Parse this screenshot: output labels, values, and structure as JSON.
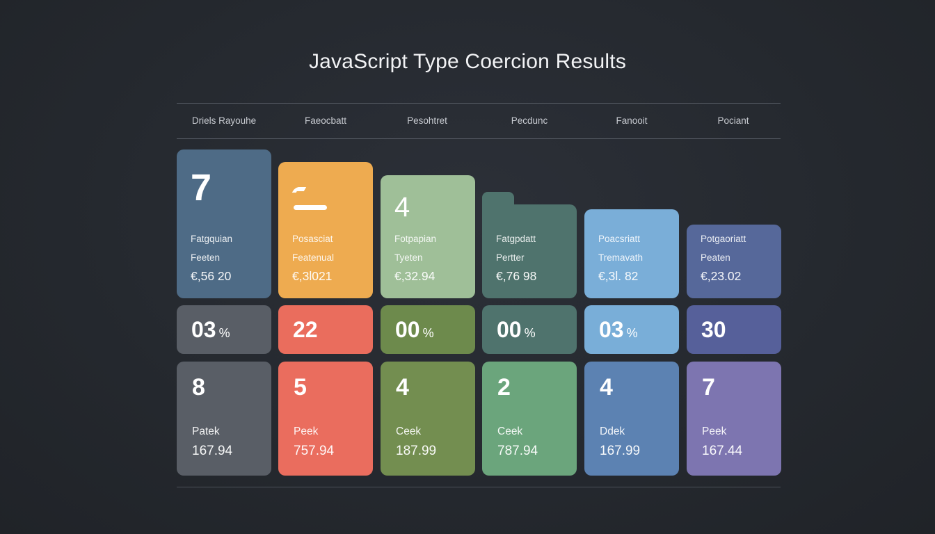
{
  "title": "JavaScript  Type Coercion Results",
  "headers": [
    "Driels Rayouhe",
    "Faeocbatt",
    "Pesohtret",
    "Pecdunc",
    "Fanooit",
    "Pociant"
  ],
  "top_cards": [
    {
      "big": "7",
      "l1": "Fatgquian",
      "l2": "Feeten",
      "l3": "€,56 20",
      "color": "#4e6b86"
    },
    {
      "big": "",
      "icon": "dash-icon",
      "l1": "Posasciat",
      "l2": "Featenual",
      "l3": "€,3l021",
      "color": "#eeab50"
    },
    {
      "big": "4",
      "l1": "Fotpapian",
      "l2": "Tyeten",
      "l3": "€,32.94",
      "color": "#9fbf98"
    },
    {
      "big": "",
      "l1": "Fatgpdatt",
      "l2": "Pertter",
      "l3": "€,76 98",
      "color": "#4f736d"
    },
    {
      "big": "",
      "l1": "Poacsriatt",
      "l2": "Tremavath",
      "l3": "€,3l. 82",
      "color": "#7aaed8"
    },
    {
      "big": "",
      "l1": "Potgaoriatt",
      "l2": "Peaten",
      "l3": "€,23.02",
      "color": "#56689a"
    }
  ],
  "mid_cards": [
    {
      "value": "03",
      "unit": "%",
      "color": "#595e66"
    },
    {
      "value": "22",
      "unit": "",
      "color": "#ea6d5d"
    },
    {
      "value": "00",
      "unit": "%",
      "color": "#6d8a4c"
    },
    {
      "value": "00",
      "unit": "%",
      "color": "#4f736d"
    },
    {
      "value": "03",
      "unit": "%",
      "color": "#79aed8"
    },
    {
      "value": "30",
      "unit": "",
      "color": "#56609a"
    }
  ],
  "bottom_cards": [
    {
      "num": "8",
      "label": "Patek",
      "value": "167.94",
      "color": "#595e66"
    },
    {
      "num": "5",
      "label": "Peek",
      "value": "757.94",
      "color": "#ea6d5e"
    },
    {
      "num": "4",
      "label": "Ceek",
      "value": "187.99",
      "color": "#738e50"
    },
    {
      "num": "2",
      "label": "Ceek",
      "value": "787.94",
      "color": "#6ba57c"
    },
    {
      "num": "4",
      "label": "Ddek",
      "value": "167.99",
      "color": "#5c82b2"
    },
    {
      "num": "7",
      "label": "Peek",
      "value": "167.44",
      "color": "#7d75b0"
    }
  ]
}
